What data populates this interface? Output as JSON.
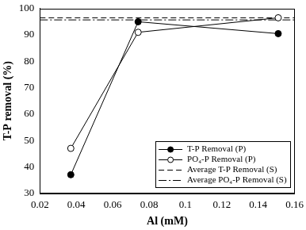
{
  "chart_data": {
    "type": "line",
    "x_label": "Al (mM)",
    "y_label": "T-P removal (%)",
    "xlim": [
      0.02,
      0.16
    ],
    "xticks": [
      0.02,
      0.04,
      0.06,
      0.08,
      0.1,
      0.12,
      0.14,
      0.16
    ],
    "ylim": [
      30,
      100
    ],
    "yticks": [
      30,
      40,
      50,
      60,
      70,
      80,
      90,
      100
    ],
    "grid": false,
    "legend": "lower right",
    "series": [
      {
        "name": "T-P Removal (P)",
        "color": "#000000",
        "marker": "circle",
        "line_style": "solid",
        "x": [
          0.037,
          0.074,
          0.151
        ],
        "values": [
          37,
          95,
          90.5
        ]
      },
      {
        "name": "PO₄-P Removal (P)",
        "color": "#000000",
        "marker": "open_circle",
        "line_style": "solid",
        "x": [
          0.037,
          0.074,
          0.151
        ],
        "values": [
          47,
          91,
          96.5
        ]
      },
      {
        "name": "Average T-P Removal (S)",
        "color": "#000000",
        "marker": "none",
        "line_style": "dashed",
        "x": [
          0.02,
          0.16
        ],
        "values": [
          96.5,
          96.5
        ]
      },
      {
        "name": "Average PO₄-P Removal (S)",
        "color": "#000000",
        "marker": "none",
        "line_style": "dashdot",
        "x": [
          0.02,
          0.16
        ],
        "values": [
          95.7,
          95.7
        ]
      }
    ]
  }
}
